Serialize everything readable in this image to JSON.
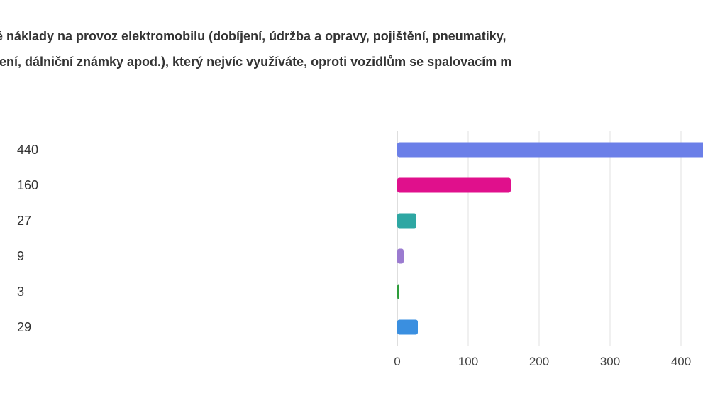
{
  "title": {
    "line1": "é náklady na provoz elektromobilu (dobíjení, údržba a opravy, pojištění, pneumatiky,",
    "line2": "jení, dálniční známky apod.), který nejvíc využíváte, oproti vozidlům se spalovacím m"
  },
  "chart_data": {
    "type": "bar",
    "orientation": "horizontal",
    "categories": [
      "440",
      "160",
      "27",
      "9",
      "3",
      "29"
    ],
    "values": [
      440,
      160,
      27,
      9,
      3,
      29
    ],
    "colors": [
      "#6b7fe8",
      "#e0108c",
      "#2ea7a3",
      "#9b7bd0",
      "#2e9d3b",
      "#3a8fe0"
    ],
    "xticks": [
      0,
      100,
      200,
      300,
      400
    ],
    "xlim": [
      0,
      440
    ],
    "grid": true
  }
}
